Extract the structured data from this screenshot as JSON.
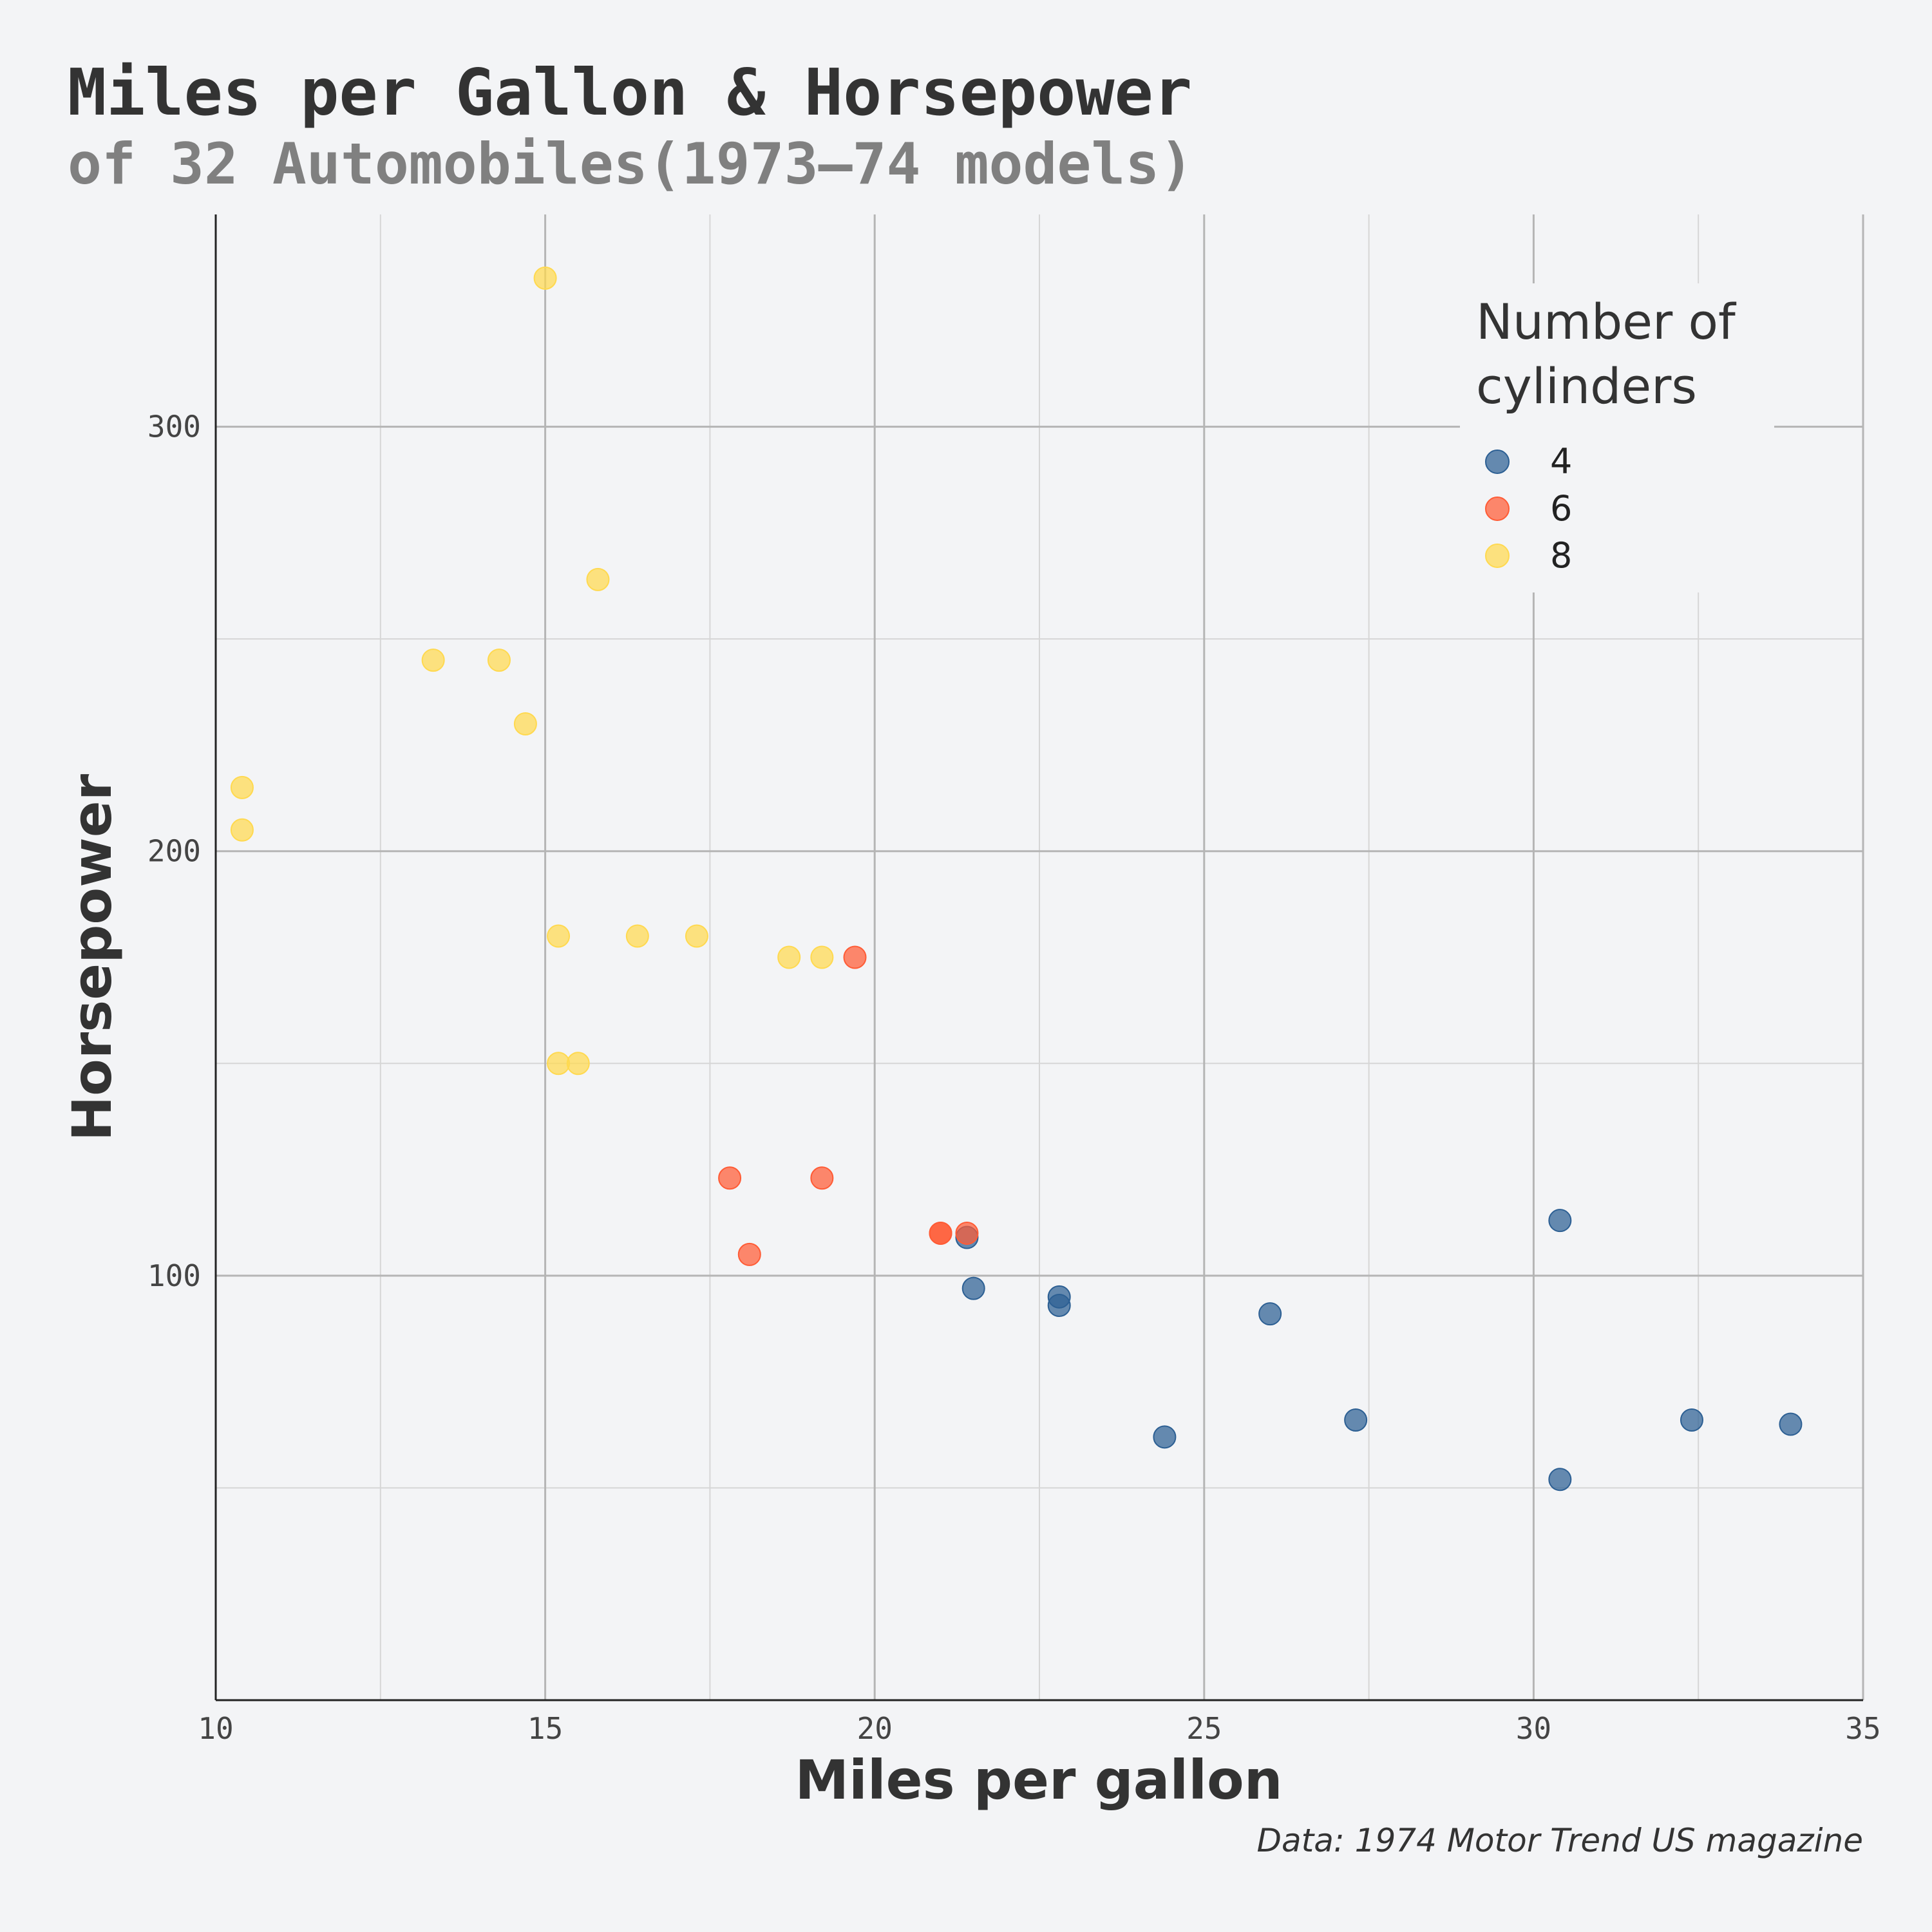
{
  "chart_data": {
    "type": "scatter",
    "title": "Miles per Gallon & Horsepower",
    "subtitle": "of 32 Automobiles(1973–74 models)",
    "x_label": "Miles per gallon",
    "y_label": "Horsepower",
    "caption": "Data: 1974 Motor Trend US magazine",
    "legend_title": "Number of cylinders",
    "legend_position": "top-right",
    "grid": true,
    "xlim": [
      10,
      35
    ],
    "xticks": [
      10,
      15,
      20,
      25,
      30,
      35
    ],
    "x_minor_grid": [
      12.5,
      17.5,
      22.5,
      27.5,
      32.5
    ],
    "ylim": [
      0,
      350
    ],
    "yticks": [
      100,
      200,
      300
    ],
    "y_minor_grid": [
      50,
      150,
      250
    ],
    "series": [
      {
        "name": "4",
        "color": "#2c5f93",
        "x": [
          22.8,
          24.4,
          22.8,
          32.4,
          30.4,
          33.9,
          21.5,
          27.3,
          26.0,
          30.4,
          21.4
        ],
        "values": [
          93,
          62,
          95,
          66,
          52,
          65,
          97,
          66,
          91,
          113,
          109
        ]
      },
      {
        "name": "6",
        "color": "#ff5b35",
        "x": [
          21.0,
          21.0,
          21.4,
          18.1,
          19.2,
          17.8,
          19.7
        ],
        "values": [
          110,
          110,
          110,
          105,
          123,
          123,
          175
        ]
      },
      {
        "name": "8",
        "color": "#ffd94f",
        "x": [
          18.7,
          14.3,
          16.4,
          17.3,
          15.2,
          10.4,
          10.4,
          14.7,
          15.5,
          15.2,
          13.3,
          19.2,
          15.8,
          15.0
        ],
        "values": [
          175,
          245,
          180,
          180,
          180,
          205,
          215,
          230,
          150,
          150,
          245,
          175,
          264,
          335
        ]
      }
    ]
  }
}
